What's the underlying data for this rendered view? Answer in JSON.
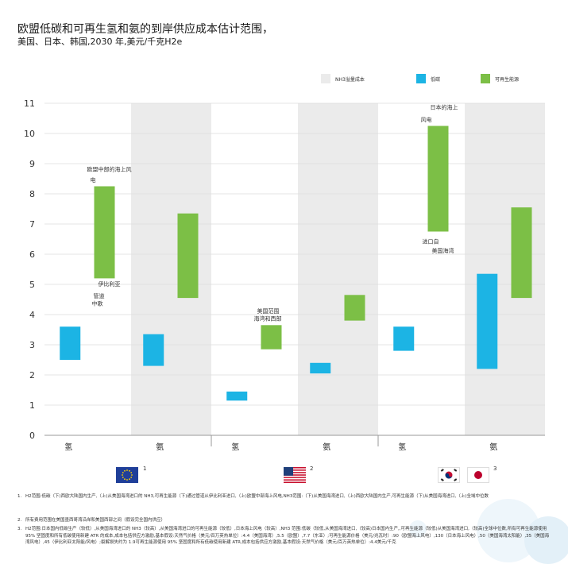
{
  "header": {
    "title": "欧盟低碳和可再生氢和氨的到岸供应成本估计范围，",
    "subtitle": "美国、日本、韩国,2030 年,美元/千克H2e"
  },
  "legend": {
    "shading": "NH3溢量成本",
    "low_carbon": "低碳",
    "renewable": "可再生能源"
  },
  "colors": {
    "low_carbon": "#1cb4e4",
    "renewable": "#7cbf46",
    "shading": "#ebebeb",
    "grid": "#dddddd"
  },
  "chart_data": {
    "type": "bar",
    "ylim": [
      0,
      11
    ],
    "yticks": [
      0,
      1,
      2,
      3,
      4,
      5,
      6,
      7,
      8,
      9,
      10,
      11
    ],
    "groups": [
      {
        "flag_number": "1",
        "categories": [
          {
            "label": "氢",
            "shaded": false,
            "low_carbon": [
              2.5,
              3.6
            ],
            "renewable": [
              5.2,
              8.25
            ]
          },
          {
            "label": "氨",
            "shaded": true,
            "low_carbon": [
              2.3,
              3.35
            ],
            "renewable": [
              4.55,
              7.35
            ]
          }
        ]
      },
      {
        "flag_number": "2",
        "categories": [
          {
            "label": "氢",
            "shaded": false,
            "low_carbon": [
              1.15,
              1.45
            ],
            "renewable": [
              2.85,
              3.65
            ]
          },
          {
            "label": "氨",
            "shaded": true,
            "low_carbon": [
              2.05,
              2.4
            ],
            "renewable": [
              3.8,
              4.65
            ]
          }
        ]
      },
      {
        "flag_number": "3",
        "categories": [
          {
            "label": "氢",
            "shaded": false,
            "low_carbon": [
              2.8,
              3.6
            ],
            "renewable": [
              6.75,
              10.25
            ]
          },
          {
            "label": "氨",
            "shaded": true,
            "low_carbon": [
              2.2,
              5.35
            ],
            "renewable": [
              4.55,
              7.55
            ]
          }
        ]
      }
    ],
    "annotations": [
      {
        "text": "欧盟中部的海上风",
        "y": 8.75,
        "group": 0,
        "cat": 0,
        "dx": -20
      },
      {
        "text": "电",
        "y": 8.4,
        "group": 0,
        "cat": 0,
        "dx": -16
      },
      {
        "text": "伊比利亚",
        "y": 4.95,
        "group": 0,
        "cat": 0,
        "dx": -6
      },
      {
        "text": "管道",
        "y": 4.55,
        "group": 0,
        "cat": 0,
        "dx": -12
      },
      {
        "text": "中歌",
        "y": 4.3,
        "group": 0,
        "cat": 0,
        "dx": -14
      },
      {
        "text": "美国范围",
        "y": 4.05,
        "group": 1,
        "cat": 0,
        "dx": -16
      },
      {
        "text": "海湾和西部",
        "y": 3.8,
        "group": 1,
        "cat": 0,
        "dx": -20
      },
      {
        "text": "日本的海上",
        "y": 10.8,
        "group": 2,
        "cat": 0,
        "dx": -8
      },
      {
        "text": "风电",
        "y": 10.4,
        "group": 2,
        "cat": 0,
        "dx": -20
      },
      {
        "text": "进口自",
        "y": 6.35,
        "group": 2,
        "cat": 0,
        "dx": -18
      },
      {
        "text": "美国海湾",
        "y": 6.05,
        "group": 2,
        "cat": 0,
        "dx": -6
      }
    ]
  },
  "flags": [
    {
      "name": "eu-flag",
      "label": "1"
    },
    {
      "name": "us-flag",
      "label": "2"
    },
    {
      "name": "kr-flag",
      "label": ""
    },
    {
      "name": "jp-flag",
      "label": "3"
    }
  ],
  "footnotes": [
    {
      "num": "1.",
      "text": "H2范围:低碳（下)西欧大陆国内生产,（上)从美国海湾进口的 NH3,可再生能源（下)通过管道从伊比利亚进口,（上)欧盟中部海上风电,NH3范围:（下)从美国海湾进口,（上)西欧大陆国内生产,可再生能源（下)从美国海湾进口,（上)全域中位数"
    },
    {
      "num": "2.",
      "text": "所有费用范围在美国墨西哥湾沿岸和美国西部之间（假设完全国内供应）"
    },
    {
      "num": "3.",
      "text": "H2范围:日本国内低碳生产（较低）,从美国海湾进口的 NH3（较高）,从美国海湾进口的可再生能源（较低）,日本海上风电（较高）,NH3 范围:低碳（较低,从美国海湾进口,（较高)日本国内生产,,可再生能源（较低)从美国海湾进口,（较高)全球中位数,所有可再生能源使用 95% 坚固度和所有低碳使用新建 ATR 的成本,成本包括供应方激励,基本假设:天然气价格（美元/百万英热单位）:4.4（美国海湾）,5.5（欧盟）,7.7（东亚）;可再生能源价格（美元/兆瓦时）:90（欧盟海上风电）,130（日本海上风电）,50（美国海湾太阳能）,35（美国海湾风电）,45（伊比利亚太阳能/风电）;裂解损失约为 1.9可再生能源使用 95% 坚固度和所有低碳使用新建 ATR,成本包括供应方激励,基本假设:天然气价格（美元/百万英热单位）:4.4美元/千克"
    }
  ]
}
